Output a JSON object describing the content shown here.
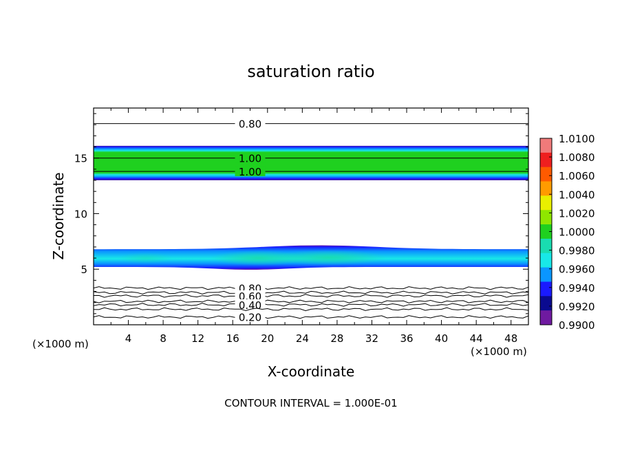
{
  "chart_data": {
    "type": "heatmap",
    "title": "saturation ratio",
    "xlabel": "X-coordinate",
    "ylabel": "Z-coordinate",
    "x_unit": "(×1000 m)",
    "y_unit": "(×1000 m)",
    "xlim": [
      0,
      50
    ],
    "ylim": [
      0,
      19.5
    ],
    "x_ticks": [
      4,
      8,
      12,
      16,
      20,
      24,
      28,
      32,
      36,
      40,
      44,
      48
    ],
    "y_ticks": [
      5,
      10,
      15
    ],
    "contour_interval_text": "CONTOUR INTERVAL = 1.000E-01",
    "colorbar": {
      "levels": [
        "1.0100",
        "1.0080",
        "1.0060",
        "1.0040",
        "1.0020",
        "1.0000",
        "0.9980",
        "0.9960",
        "0.9940",
        "0.9920",
        "0.9900"
      ],
      "colors": [
        "#f07a7a",
        "#ef1f1f",
        "#ff5a00",
        "#ff9b00",
        "#e9f000",
        "#8fe600",
        "#1fd01f",
        "#19dcb0",
        "#18e8e8",
        "#0a96ff",
        "#1a1aff",
        "#0a0a90",
        "#6f1aa0"
      ]
    },
    "colored_bands": [
      {
        "name": "upper",
        "z_bottom": 13.0,
        "z_top": 16.1,
        "core_value": 1.0
      },
      {
        "name": "lower",
        "z_bottom": 5.2,
        "z_top": 6.8,
        "core_value": 0.996
      }
    ],
    "contours": [
      {
        "value": 0.8,
        "label": "0.80",
        "z": 18.1
      },
      {
        "value": 1.0,
        "label": "1.00",
        "z": 15.0
      },
      {
        "value": 1.0,
        "label": "1.00",
        "z": 13.8
      },
      {
        "value": 0.8,
        "label": "0.80",
        "z": 3.3
      },
      {
        "value": 0.7,
        "label": "",
        "z": 2.9
      },
      {
        "value": 0.6,
        "label": "0.60",
        "z": 2.6
      },
      {
        "value": 0.5,
        "label": "",
        "z": 2.1
      },
      {
        "value": 0.4,
        "label": "0.40",
        "z": 1.8
      },
      {
        "value": 0.3,
        "label": "",
        "z": 1.4
      },
      {
        "value": 0.2,
        "label": "0.20",
        "z": 0.7
      }
    ]
  }
}
